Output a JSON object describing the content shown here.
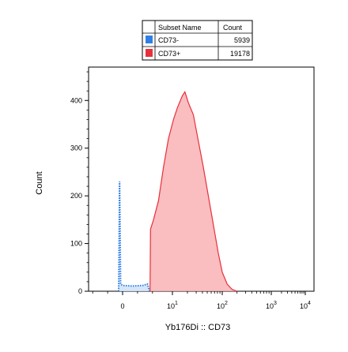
{
  "chart_data": {
    "type": "area",
    "title": "",
    "xlabel": "Yb176Di :: CD73",
    "ylabel": "Count",
    "ylim": [
      0,
      470
    ],
    "yticks": [
      0,
      100,
      200,
      300,
      400
    ],
    "x_scale": "biexponential",
    "xticks": [
      {
        "base": "0",
        "exp": ""
      },
      {
        "base": "10",
        "exp": "1"
      },
      {
        "base": "10",
        "exp": "2"
      },
      {
        "base": "10",
        "exp": "3"
      },
      {
        "base": "10",
        "exp": "4"
      }
    ],
    "legend": {
      "placement": "top-center",
      "headers": [
        "Subset Name",
        "Count"
      ],
      "entries": [
        {
          "name": "CD73-",
          "count": "5939",
          "color": "#2f7fe6"
        },
        {
          "name": "CD73+",
          "count": "19178",
          "color": "#e8303a"
        }
      ]
    },
    "series": [
      {
        "name": "CD73-",
        "color": "#2f7fe6",
        "style": "dotted",
        "fill": "#cfe2f8",
        "points": [
          [
            -0.08,
            0
          ],
          [
            -0.06,
            230
          ],
          [
            -0.04,
            15
          ],
          [
            0,
            12
          ],
          [
            0.2,
            11
          ],
          [
            0.4,
            12
          ],
          [
            0.5,
            15
          ],
          [
            0.54,
            0
          ]
        ]
      },
      {
        "name": "CD73+",
        "color": "#e8303a",
        "style": "solid",
        "fill": "#f9b1b5",
        "points": [
          [
            0.55,
            0
          ],
          [
            0.56,
            130
          ],
          [
            0.62,
            150
          ],
          [
            0.72,
            190
          ],
          [
            0.82,
            260
          ],
          [
            0.92,
            320
          ],
          [
            1.02,
            360
          ],
          [
            1.1,
            385
          ],
          [
            1.2,
            410
          ],
          [
            1.25,
            418
          ],
          [
            1.32,
            395
          ],
          [
            1.42,
            370
          ],
          [
            1.52,
            315
          ],
          [
            1.62,
            260
          ],
          [
            1.72,
            200
          ],
          [
            1.82,
            140
          ],
          [
            1.92,
            80
          ],
          [
            2.0,
            40
          ],
          [
            2.1,
            15
          ],
          [
            2.2,
            4
          ],
          [
            2.3,
            0
          ]
        ]
      }
    ]
  }
}
